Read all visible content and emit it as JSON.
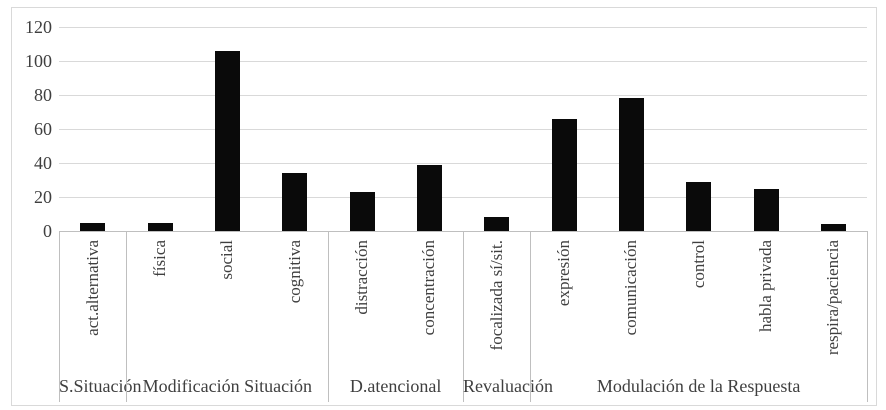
{
  "chart_data": {
    "type": "bar",
    "title": "",
    "categories": [
      "act.alternativa",
      "física",
      "social",
      "cognitiva",
      "distracción",
      "concentración",
      "focalizada sí/sit.",
      "expresión",
      "comunicación",
      "control",
      "habla privada",
      "respira/paciencia"
    ],
    "values": [
      5,
      5,
      106,
      34,
      23,
      39,
      8,
      66,
      78,
      29,
      25,
      4
    ],
    "groups": [
      {
        "label": "S.Situación",
        "span": 1
      },
      {
        "label": "Modificación Situación",
        "span": 3
      },
      {
        "label": "D.atencional",
        "span": 2
      },
      {
        "label": "Revaluación",
        "span": 1
      },
      {
        "label": "Modulación de la Respuesta",
        "span": 5
      }
    ],
    "y_ticks": [
      0,
      20,
      40,
      60,
      80,
      100,
      120
    ],
    "ylim": [
      0,
      120
    ],
    "xlabel": "",
    "ylabel": "",
    "grid": true,
    "legend": "none",
    "bar_color": "#0a0a0a",
    "gridline_color": "#d9d9d9",
    "axis_line_color": "#bfbfbf",
    "frame_color": "#d9d9d9",
    "text_color": "#3f3f3f"
  }
}
